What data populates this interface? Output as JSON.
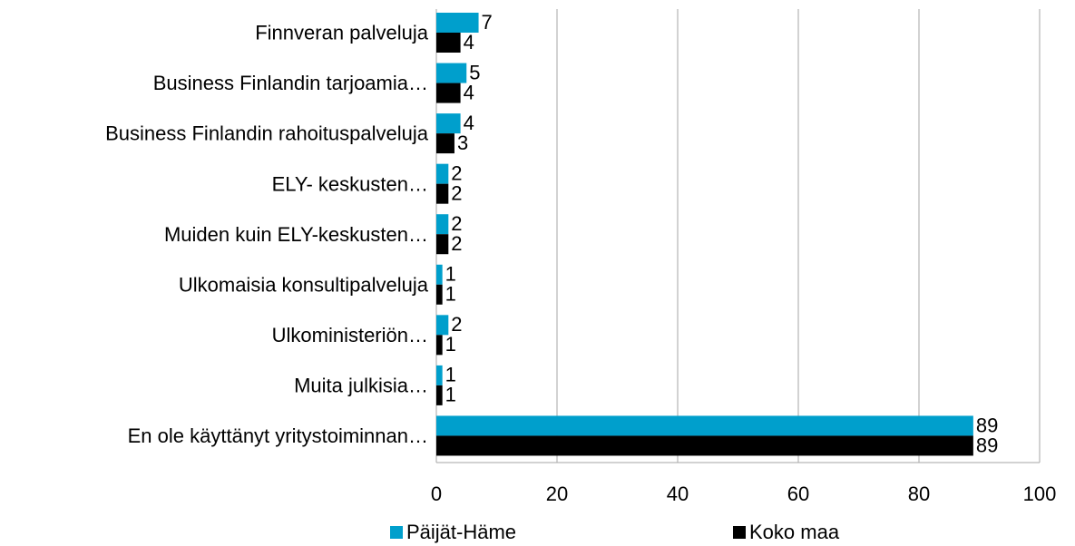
{
  "chart_data": {
    "type": "barh",
    "categories": [
      "Finnveran palveluja",
      "Business Finlandin  tarjoamia…",
      "Business Finlandin rahoituspalveluja",
      "ELY- keskusten…",
      "Muiden kuin ELY-keskusten…",
      "Ulkomaisia konsultipalveluja",
      "Ulkoministeriön…",
      "Muita julkisia…",
      "En ole käyttänyt yritystoiminnan…"
    ],
    "series": [
      {
        "name": "Päijät-Häme",
        "color": "#009fcc",
        "values": [
          7,
          5,
          4,
          2,
          2,
          1,
          2,
          1,
          89
        ]
      },
      {
        "name": "Koko maa",
        "color": "#000000",
        "values": [
          4,
          4,
          3,
          2,
          2,
          1,
          1,
          1,
          89
        ]
      }
    ],
    "xlim": [
      0,
      100
    ],
    "xticks": [
      0,
      20,
      40,
      60,
      80,
      100
    ],
    "grid": true,
    "legend": "bottom"
  }
}
